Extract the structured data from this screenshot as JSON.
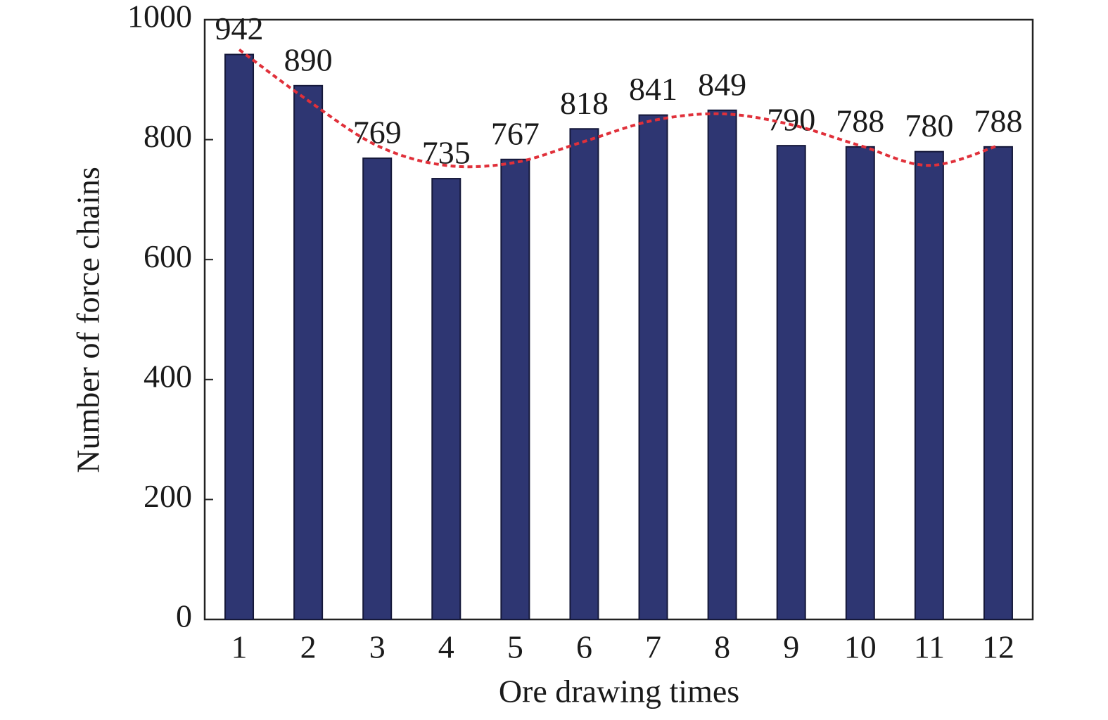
{
  "chart_data": {
    "type": "bar",
    "x_label": "Ore drawing times",
    "y_label": "Number of force chains",
    "categories": [
      "1",
      "2",
      "3",
      "4",
      "5",
      "6",
      "7",
      "8",
      "9",
      "10",
      "11",
      "12"
    ],
    "values": [
      942,
      890,
      769,
      735,
      767,
      818,
      841,
      849,
      790,
      788,
      780,
      788
    ],
    "color": "#2e3672",
    "trend_values": [
      950,
      865,
      790,
      757,
      762,
      797,
      832,
      843,
      825,
      790,
      757,
      790
    ],
    "trend_color": "#e0303a",
    "ylim": [
      0,
      1000
    ],
    "yticks": [
      0,
      200,
      400,
      600,
      800,
      1000
    ]
  }
}
